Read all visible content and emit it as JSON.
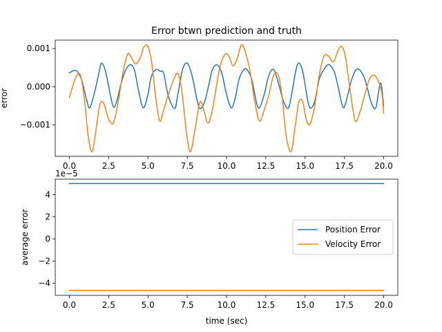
{
  "figure": {
    "background": "#ffffff"
  },
  "chart_data": [
    {
      "type": "line",
      "title": "Error btwn prediction and truth",
      "xlabel": "",
      "ylabel": "error",
      "xlim": [
        -0.9,
        20.9
      ],
      "ylim": [
        -0.00182,
        0.00122
      ],
      "xticks": [
        0,
        2.5,
        5,
        7.5,
        10,
        12.5,
        15,
        17.5,
        20
      ],
      "xtick_labels": [
        "0.0",
        "2.5",
        "5.0",
        "7.5",
        "10.0",
        "12.5",
        "15.0",
        "17.5",
        "20.0"
      ],
      "yticks": [
        0.001,
        0,
        -0.001
      ],
      "ytick_labels": [
        "0.001",
        "0.000",
        "−0.001"
      ],
      "grid": false,
      "series": [
        {
          "color": "#1f77b4",
          "x": [
            0.0,
            0.25,
            0.5,
            0.8,
            1.1,
            1.3,
            1.6,
            1.9,
            2.05,
            2.3,
            2.6,
            2.8,
            3.0,
            3.3,
            3.6,
            3.9,
            4.15,
            4.4,
            4.7,
            5.0,
            5.2,
            5.5,
            5.8,
            6.0,
            6.3,
            6.7,
            6.9,
            7.2,
            7.5,
            7.8,
            8.1,
            8.3,
            8.6,
            8.9,
            9.1,
            9.4,
            9.7,
            10.0,
            10.3,
            10.55,
            10.8,
            11.1,
            11.3,
            11.6,
            11.9,
            12.1,
            12.4,
            12.7,
            13.0,
            13.3,
            13.6,
            13.9,
            14.1,
            14.4,
            14.6,
            14.85,
            15.1,
            15.3,
            15.6,
            15.9,
            16.2,
            16.5,
            16.85,
            17.1,
            17.4,
            17.6,
            17.9,
            18.2,
            18.45,
            18.8,
            19.2,
            19.5,
            19.8,
            20.0
          ],
          "y": [
            0.00036,
            0.00042,
            0.0004,
            0.00015,
            -0.00035,
            -0.00055,
            -0.00015,
            0.0004,
            0.00062,
            0.0004,
            -0.0002,
            -0.00053,
            -0.0004,
            0.0001,
            0.00045,
            0.00058,
            0.00042,
            -0.0001,
            -0.00055,
            -0.0002,
            0.00025,
            0.00045,
            0.0004,
            0.00035,
            -0.00025,
            -0.00057,
            -0.0002,
            0.00045,
            0.00062,
            0.0003,
            -0.0003,
            -0.00057,
            -0.0004,
            0.0001,
            0.00045,
            0.00057,
            0.00035,
            -0.0002,
            -0.00055,
            -0.0003,
            0.0002,
            0.00045,
            0.00045,
            0.0002,
            -0.0004,
            -0.00055,
            -0.0002,
            0.0003,
            0.00045,
            0.0001,
            -0.00035,
            -0.00057,
            -0.0003,
            0.0004,
            0.00062,
            0.0004,
            -0.0002,
            -0.00055,
            -0.0004,
            0.0002,
            0.00045,
            0.00058,
            0.0004,
            0.0,
            -0.00053,
            -0.0004,
            0.0001,
            0.00042,
            0.00045,
            0.0002,
            -0.0004,
            -0.00055,
            0.0001,
            -0.0005
          ]
        },
        {
          "color": "#ff7f0e",
          "x": [
            0.0,
            0.2,
            0.45,
            0.7,
            0.95,
            1.2,
            1.45,
            1.7,
            1.95,
            2.2,
            2.5,
            2.8,
            3.1,
            3.4,
            3.7,
            3.9,
            4.2,
            4.5,
            4.75,
            5.0,
            5.25,
            5.5,
            5.75,
            6.0,
            6.3,
            6.6,
            6.9,
            7.15,
            7.45,
            7.7,
            8.0,
            8.3,
            8.55,
            8.8,
            9.05,
            9.35,
            9.6,
            9.9,
            10.15,
            10.4,
            10.65,
            10.95,
            11.2,
            11.5,
            11.8,
            12.1,
            12.4,
            12.7,
            13.0,
            13.3,
            13.55,
            13.8,
            14.1,
            14.35,
            14.6,
            14.85,
            15.1,
            15.35,
            15.65,
            15.9,
            16.2,
            16.5,
            16.8,
            17.1,
            17.35,
            17.6,
            17.9,
            18.2,
            18.5,
            18.8,
            19.1,
            19.4,
            19.7,
            19.9,
            20.0
          ],
          "y": [
            -0.00028,
            0.0,
            0.00028,
            0.0003,
            -0.0003,
            -0.0013,
            -0.0017,
            -0.0011,
            -0.00045,
            -0.00045,
            -0.00085,
            -0.00095,
            -0.0004,
            0.00035,
            0.00085,
            0.0008,
            0.0006,
            0.00075,
            0.00105,
            0.00105,
            0.0006,
            -0.0003,
            -0.0009,
            -0.0006,
            -0.0002,
            0.00015,
            0.00035,
            -0.0001,
            -0.0012,
            -0.0017,
            -0.0011,
            -0.0004,
            -0.0006,
            -0.00095,
            -0.0007,
            0.0,
            0.00055,
            0.00085,
            0.0008,
            0.00055,
            0.0007,
            0.0011,
            0.0009,
            0.0004,
            -0.0004,
            -0.0009,
            -0.0006,
            -0.0002,
            0.0003,
            0.0003,
            -0.0003,
            -0.0013,
            -0.0017,
            -0.0011,
            -0.0004,
            -0.0004,
            -0.0009,
            -0.00095,
            -0.0004,
            0.0003,
            0.0008,
            0.0008,
            0.00065,
            0.00095,
            0.00105,
            0.0007,
            -0.0002,
            -0.0009,
            -0.00065,
            -0.0002,
            0.0002,
            0.0003,
            0.0001,
            -0.0002,
            -0.0007
          ]
        }
      ]
    },
    {
      "type": "line",
      "title": "",
      "xlabel": "time (sec)",
      "ylabel": "average error",
      "offset_text": "1e−5",
      "xlim": [
        -0.9,
        20.9
      ],
      "ylim": [
        -5.1,
        5.4
      ],
      "xticks": [
        0,
        2.5,
        5,
        7.5,
        10,
        12.5,
        15,
        17.5,
        20
      ],
      "xtick_labels": [
        "0.0",
        "2.5",
        "5.0",
        "7.5",
        "10.0",
        "12.5",
        "15.0",
        "17.5",
        "20.0"
      ],
      "yticks": [
        4,
        2,
        0,
        -2,
        -4
      ],
      "ytick_labels": [
        "4",
        "2",
        "0",
        "−2",
        "−4"
      ],
      "grid": false,
      "legend_position": "center-right",
      "series": [
        {
          "name": "Position Error",
          "color": "#1f77b4",
          "x": [
            0,
            20
          ],
          "y": [
            5.0,
            5.0
          ]
        },
        {
          "name": "Velocity Error",
          "color": "#ff7f0e",
          "x": [
            0,
            20
          ],
          "y": [
            -4.65,
            -4.65
          ]
        }
      ]
    }
  ]
}
